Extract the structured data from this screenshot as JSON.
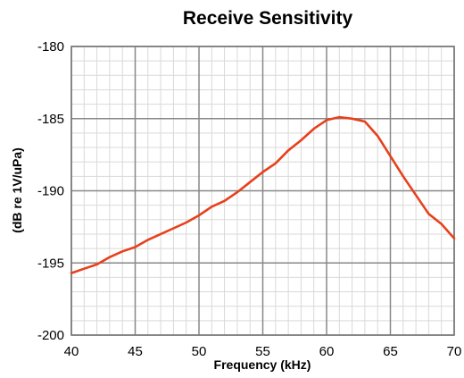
{
  "chart_data": {
    "type": "line",
    "title": "Receive Sensitivity",
    "xlabel": "Frequency (kHz)",
    "ylabel": "(dB re 1V/uPa)",
    "xlim": [
      40,
      70
    ],
    "ylim": [
      -200,
      -180
    ],
    "x_ticks": [
      40,
      45,
      50,
      55,
      60,
      65,
      70
    ],
    "y_ticks": [
      -180,
      -185,
      -190,
      -195,
      -200
    ],
    "x_minor_step": 1,
    "y_minor_step": 1,
    "grid": true,
    "line_color": "#e8401c",
    "series": [
      {
        "x": [
          40,
          41,
          42,
          43,
          44,
          45,
          46,
          47,
          48,
          49,
          50,
          51,
          52,
          53,
          54,
          55,
          56,
          57,
          58,
          59,
          60,
          61,
          62,
          63,
          64,
          65,
          66,
          67,
          68,
          69,
          70
        ],
        "y": [
          -195.7,
          -195.4,
          -195.1,
          -194.6,
          -194.2,
          -193.9,
          -193.4,
          -193.0,
          -192.6,
          -192.2,
          -191.7,
          -191.1,
          -190.7,
          -190.1,
          -189.4,
          -188.7,
          -188.1,
          -187.2,
          -186.5,
          -185.7,
          -185.1,
          -184.9,
          -185.0,
          -185.2,
          -186.2,
          -187.6,
          -189.0,
          -190.3,
          -191.6,
          -192.3,
          -193.3
        ]
      }
    ]
  }
}
